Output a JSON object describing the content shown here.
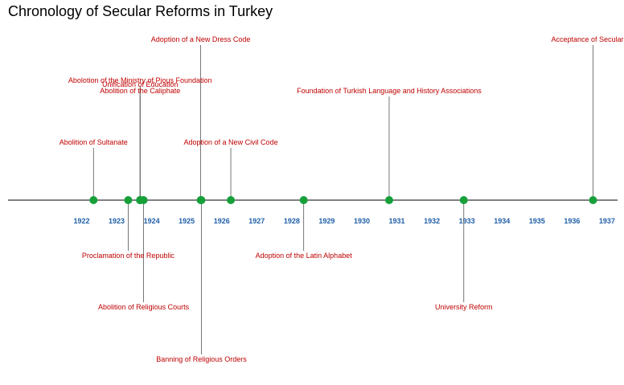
{
  "title": "Chronology of Secular Reforms in Turkey",
  "colors": {
    "event_text": "#c00000",
    "year_text": "#1f5fa8",
    "point": "#17a03a",
    "axis": "#000000",
    "stem": "#555555"
  },
  "chart_data": {
    "type": "timeline",
    "title": "Chronology of Secular Reforms in Turkey",
    "x_range": [
      1920.4,
      1937.8
    ],
    "years": [
      "1922",
      "1923",
      "1924",
      "1925",
      "1926",
      "1927",
      "1928",
      "1929",
      "1930",
      "1931",
      "1932",
      "1933",
      "1934",
      "1935",
      "1936",
      "1937"
    ],
    "events": [
      {
        "date": "1922-11-01",
        "x": 1922.84,
        "label": "Abolition of Sultanate",
        "level": 1
      },
      {
        "date": "1923-10-29",
        "x": 1923.83,
        "label": "Proclamation of the Republic",
        "level": -1
      },
      {
        "date": "1924-03-03",
        "x": 1924.17,
        "label": "Abolition of the Caliphate",
        "level": 2
      },
      {
        "date": "1924-03-03",
        "x": 1924.17,
        "label": "Unification of Education",
        "level": 2.2
      },
      {
        "date": "1924-03-03",
        "x": 1924.17,
        "label": "Abolotion of the Ministry of Pious Foundation",
        "level": 2.4
      },
      {
        "date": "1924-04-08",
        "x": 1924.27,
        "label": "Abolition of Religious Courts",
        "level": -2
      },
      {
        "date": "1925-11-25",
        "x": 1925.9,
        "label": "Adoption of a New Dress Code",
        "level": 3
      },
      {
        "date": "1925-11-30",
        "x": 1925.92,
        "label": "Banning of Religious Orders",
        "level": -3
      },
      {
        "date": "1926-10-04",
        "x": 1926.76,
        "label": "Adoption of a New Civil Code",
        "level": 1
      },
      {
        "date": "1928-11-01",
        "x": 1928.84,
        "label": "Adoption of the Latin Alphabet",
        "level": -1
      },
      {
        "date": "1931-04-12",
        "x": 1931.28,
        "label": "Foundation of Turkish Language and History Associations",
        "level": 2
      },
      {
        "date": "1933-05-31",
        "x": 1933.41,
        "label": "University Reform",
        "level": -2
      },
      {
        "date": "1937-02-05",
        "x": 1937.1,
        "label": "Acceptance of Secularism",
        "level": 3
      }
    ]
  }
}
